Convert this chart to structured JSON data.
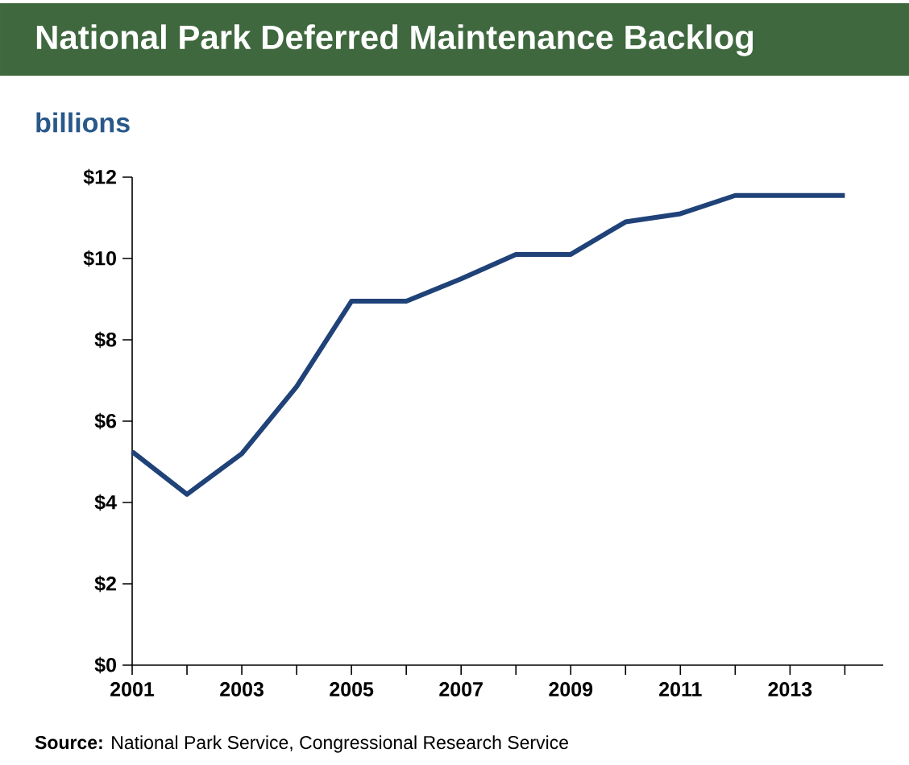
{
  "chart_data": {
    "type": "line",
    "title": "National Park Deferred Maintenance Backlog",
    "ylabel": "billions",
    "annotations": [
      "**Source:** National Park Service, Congressional Research Service"
    ],
    "x": [
      2001,
      2002,
      2003,
      2004,
      2005,
      2006,
      2007,
      2008,
      2009,
      2010,
      2011,
      2012,
      2013,
      2014
    ],
    "values": [
      5.25,
      4.2,
      5.2,
      6.85,
      8.95,
      8.95,
      9.5,
      10.1,
      10.1,
      10.9,
      11.1,
      11.55,
      11.55,
      11.55
    ],
    "color": "#1f4278",
    "xlim": [
      2001,
      2014.7
    ],
    "ylim": [
      0,
      12
    ],
    "xticks": [
      2001,
      {
        "value": 2002,
        "label": null
      },
      2003,
      {
        "value": 2004,
        "label": null
      },
      2005,
      {
        "value": 2006,
        "label": null
      },
      2007,
      {
        "value": 2008,
        "label": null
      },
      2009,
      {
        "value": 2010,
        "label": null
      },
      2011,
      {
        "value": 2012,
        "label": null
      },
      2013,
      {
        "value": 2014,
        "label": null
      }
    ],
    "yticks": [
      {
        "value": 0,
        "label": "$0"
      },
      {
        "value": 2,
        "label": "$2"
      },
      {
        "value": 4,
        "label": "$4"
      },
      {
        "value": 6,
        "label": "$6"
      },
      {
        "value": 8,
        "label": "$8"
      },
      {
        "value": 10,
        "label": "$10"
      },
      {
        "value": 12,
        "label": "$12"
      }
    ]
  }
}
